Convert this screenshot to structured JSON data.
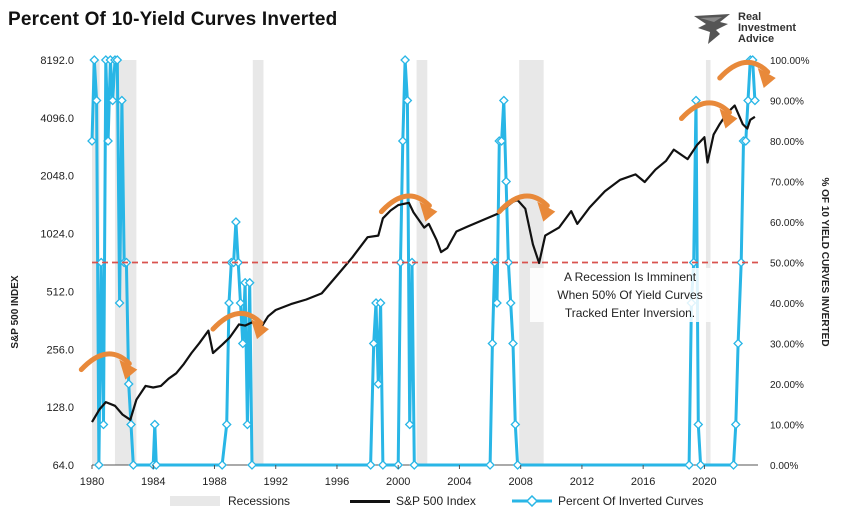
{
  "title": "Percent Of 10-Yield Curves Inverted",
  "logo": {
    "line1": "Real",
    "line2": "Investment",
    "line3": "Advice",
    "icon": "eagle-logo-icon"
  },
  "annotation": {
    "line1": "A Recession Is Imminent",
    "line2": "When 50% Of Yield Curves",
    "line3": "Tracked Enter Inversion."
  },
  "legend": {
    "recessions": "Recessions",
    "sp500": "S&P 500 Index",
    "percent": "Percent Of Inverted Curves"
  },
  "colors": {
    "sp500": "#111111",
    "percent": "#29b6e6",
    "recession": "#e8e8e8",
    "threshold": "#d9534f",
    "arrow": "#e8893a"
  },
  "chart_data": {
    "type": "line",
    "title": "Percent Of 10-Yield Curves Inverted",
    "xlabel": "",
    "ylabel_left": "S&P 500 INDEX",
    "ylabel_right": "% OF 10 YIELD CURVES INVERTED",
    "x_ticks": [
      "1980",
      "1984",
      "1988",
      "1992",
      "1996",
      "2000",
      "2004",
      "2008",
      "2012",
      "2016",
      "2020"
    ],
    "y_left_ticks": [
      "64.0",
      "128.0",
      "256.0",
      "512.0",
      "1024.0",
      "2048.0",
      "4096.0",
      "8192.0"
    ],
    "y_left_scale": "log2",
    "y_left_range": [
      64,
      8192
    ],
    "y_right_ticks": [
      "0.00%",
      "10.00%",
      "20.00%",
      "30.00%",
      "40.00%",
      "50.00%",
      "60.00%",
      "70.00%",
      "80.00%",
      "90.00%",
      "100.00%"
    ],
    "y_right_range": [
      0,
      100
    ],
    "x_range": [
      1980,
      2023.5
    ],
    "threshold_pct": 50,
    "recessions": [
      [
        1980.0,
        1980.5
      ],
      [
        1981.5,
        1982.9
      ],
      [
        1990.5,
        1991.2
      ],
      [
        2001.2,
        2001.9
      ],
      [
        2007.9,
        2009.5
      ],
      [
        2020.1,
        2020.4
      ]
    ],
    "series": [
      {
        "name": "S&P 500 Index",
        "axis": "left",
        "points": [
          [
            1980.0,
            107
          ],
          [
            1980.5,
            125
          ],
          [
            1980.9,
            136
          ],
          [
            1981.5,
            130
          ],
          [
            1982.0,
            117
          ],
          [
            1982.5,
            110
          ],
          [
            1982.9,
            140
          ],
          [
            1983.5,
            165
          ],
          [
            1984.0,
            162
          ],
          [
            1984.5,
            165
          ],
          [
            1985.0,
            180
          ],
          [
            1985.5,
            192
          ],
          [
            1986.0,
            215
          ],
          [
            1986.5,
            245
          ],
          [
            1987.0,
            275
          ],
          [
            1987.6,
            320
          ],
          [
            1987.9,
            245
          ],
          [
            1988.5,
            270
          ],
          [
            1989.0,
            295
          ],
          [
            1989.6,
            345
          ],
          [
            1990.0,
            340
          ],
          [
            1990.5,
            355
          ],
          [
            1990.8,
            310
          ],
          [
            1991.5,
            380
          ],
          [
            1992.0,
            410
          ],
          [
            1993.0,
            440
          ],
          [
            1994.0,
            465
          ],
          [
            1995.0,
            500
          ],
          [
            1996.0,
            620
          ],
          [
            1997.0,
            770
          ],
          [
            1998.0,
            980
          ],
          [
            1998.7,
            1000
          ],
          [
            1999.0,
            1230
          ],
          [
            1999.5,
            1350
          ],
          [
            2000.0,
            1440
          ],
          [
            2000.7,
            1480
          ],
          [
            2001.0,
            1320
          ],
          [
            2001.7,
            1100
          ],
          [
            2002.0,
            1150
          ],
          [
            2002.5,
            950
          ],
          [
            2002.8,
            820
          ],
          [
            2003.2,
            860
          ],
          [
            2003.8,
            1050
          ],
          [
            2004.5,
            1110
          ],
          [
            2005.5,
            1200
          ],
          [
            2006.5,
            1300
          ],
          [
            2007.5,
            1500
          ],
          [
            2007.8,
            1530
          ],
          [
            2008.3,
            1380
          ],
          [
            2008.8,
            900
          ],
          [
            2009.2,
            720
          ],
          [
            2009.6,
            1000
          ],
          [
            2010.5,
            1100
          ],
          [
            2011.3,
            1340
          ],
          [
            2011.7,
            1150
          ],
          [
            2012.5,
            1400
          ],
          [
            2013.5,
            1700
          ],
          [
            2014.5,
            1950
          ],
          [
            2015.5,
            2080
          ],
          [
            2016.1,
            1900
          ],
          [
            2016.8,
            2200
          ],
          [
            2017.5,
            2450
          ],
          [
            2018.0,
            2800
          ],
          [
            2018.9,
            2500
          ],
          [
            2019.5,
            2950
          ],
          [
            2020.0,
            3250
          ],
          [
            2020.2,
            2400
          ],
          [
            2020.6,
            3350
          ],
          [
            2021.0,
            3800
          ],
          [
            2021.5,
            4350
          ],
          [
            2021.98,
            4750
          ],
          [
            2022.5,
            3800
          ],
          [
            2022.8,
            3600
          ],
          [
            2023.0,
            4000
          ],
          [
            2023.3,
            4150
          ]
        ]
      },
      {
        "name": "Percent Of Inverted Curves",
        "axis": "right",
        "points": [
          [
            1980.0,
            80
          ],
          [
            1980.15,
            100
          ],
          [
            1980.3,
            90
          ],
          [
            1980.45,
            0
          ],
          [
            1980.6,
            50
          ],
          [
            1980.75,
            10
          ],
          [
            1980.9,
            100
          ],
          [
            1981.05,
            80
          ],
          [
            1981.2,
            100
          ],
          [
            1981.35,
            90
          ],
          [
            1981.5,
            100
          ],
          [
            1981.65,
            100
          ],
          [
            1981.8,
            40
          ],
          [
            1981.95,
            90
          ],
          [
            1982.1,
            50
          ],
          [
            1982.25,
            50
          ],
          [
            1982.4,
            20
          ],
          [
            1982.55,
            10
          ],
          [
            1982.7,
            0
          ],
          [
            1984.0,
            0
          ],
          [
            1984.1,
            10
          ],
          [
            1984.2,
            0
          ],
          [
            1988.5,
            0
          ],
          [
            1988.8,
            10
          ],
          [
            1988.95,
            40
          ],
          [
            1989.1,
            50
          ],
          [
            1989.25,
            50
          ],
          [
            1989.4,
            60
          ],
          [
            1989.55,
            50
          ],
          [
            1989.7,
            40
          ],
          [
            1989.85,
            30
          ],
          [
            1990.0,
            45
          ],
          [
            1990.15,
            10
          ],
          [
            1990.3,
            45
          ],
          [
            1990.45,
            0
          ],
          [
            1998.2,
            0
          ],
          [
            1998.4,
            30
          ],
          [
            1998.55,
            40
          ],
          [
            1998.7,
            20
          ],
          [
            1998.85,
            40
          ],
          [
            1999.0,
            0
          ],
          [
            2000.0,
            0
          ],
          [
            2000.15,
            50
          ],
          [
            2000.3,
            80
          ],
          [
            2000.45,
            100
          ],
          [
            2000.6,
            90
          ],
          [
            2000.75,
            10
          ],
          [
            2000.9,
            50
          ],
          [
            2001.05,
            0
          ],
          [
            2006.0,
            0
          ],
          [
            2006.15,
            30
          ],
          [
            2006.3,
            50
          ],
          [
            2006.45,
            40
          ],
          [
            2006.6,
            80
          ],
          [
            2006.75,
            80
          ],
          [
            2006.9,
            90
          ],
          [
            2007.05,
            70
          ],
          [
            2007.2,
            50
          ],
          [
            2007.35,
            40
          ],
          [
            2007.5,
            30
          ],
          [
            2007.65,
            10
          ],
          [
            2007.8,
            0
          ],
          [
            2019.0,
            0
          ],
          [
            2019.15,
            40
          ],
          [
            2019.3,
            50
          ],
          [
            2019.45,
            90
          ],
          [
            2019.6,
            10
          ],
          [
            2019.75,
            0
          ],
          [
            2021.9,
            0
          ],
          [
            2022.05,
            10
          ],
          [
            2022.2,
            30
          ],
          [
            2022.4,
            50
          ],
          [
            2022.55,
            80
          ],
          [
            2022.7,
            80
          ],
          [
            2022.85,
            90
          ],
          [
            2023.0,
            100
          ],
          [
            2023.15,
            100
          ],
          [
            2023.3,
            90
          ]
        ]
      }
    ]
  }
}
